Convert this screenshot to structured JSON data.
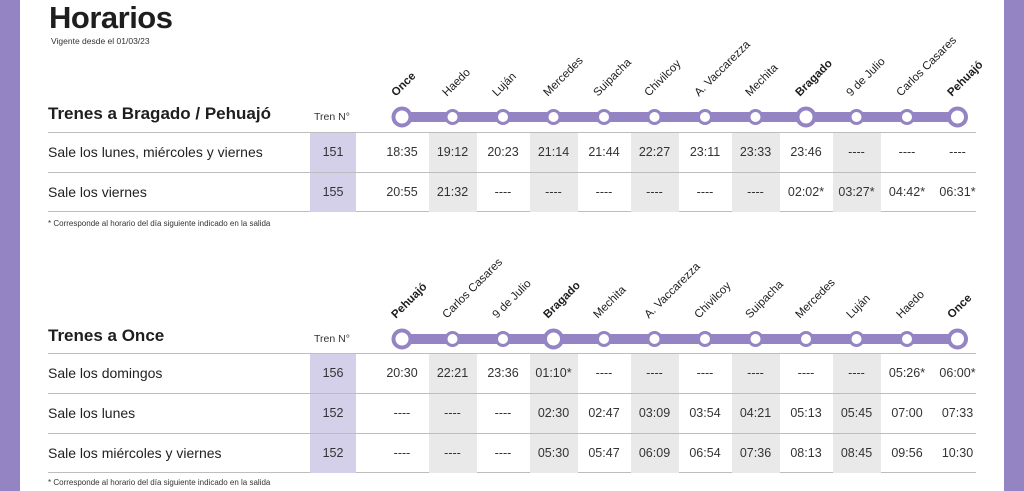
{
  "title": "Horarios",
  "subtitle": "Vigente desde el 01/03/23",
  "accent_color": "#9484c4",
  "train_cell_color": "#d5d0ea",
  "shade_color": "#e9e9ea",
  "note_text": "* Corresponde al horario del día siguiente indicado en la salida",
  "sections": [
    {
      "title": "Trenes a Bragado / Pehuajó",
      "tren_label": "Tren N°",
      "stations": [
        {
          "name": "Once",
          "major": true
        },
        {
          "name": "Haedo",
          "major": false
        },
        {
          "name": "Luján",
          "major": false
        },
        {
          "name": "Mercedes",
          "major": false
        },
        {
          "name": "Suipacha",
          "major": false
        },
        {
          "name": "Chivilcoy",
          "major": false
        },
        {
          "name": "A. Vaccarezza",
          "major": false
        },
        {
          "name": "Mechita",
          "major": false
        },
        {
          "name": "Bragado",
          "major": true
        },
        {
          "name": "9 de Julio",
          "major": false
        },
        {
          "name": "Carlos Casares",
          "major": false
        },
        {
          "name": "Pehuajó",
          "major": true
        }
      ],
      "rows": [
        {
          "label": "Sale los lunes, miércoles y viernes",
          "train": "151",
          "times": [
            "18:35",
            "19:12",
            "20:23",
            "21:14",
            "21:44",
            "22:27",
            "23:11",
            "23:33",
            "23:46",
            "----",
            "----",
            "----"
          ]
        },
        {
          "label": "Sale los viernes",
          "train": "155",
          "times": [
            "20:55",
            "21:32",
            "----",
            "----",
            "----",
            "----",
            "----",
            "----",
            "02:02*",
            "03:27*",
            "04:42*",
            "06:31*"
          ]
        }
      ]
    },
    {
      "title": "Trenes a Once",
      "tren_label": "Tren N°",
      "stations": [
        {
          "name": "Pehuajó",
          "major": true
        },
        {
          "name": "Carlos Casares",
          "major": false
        },
        {
          "name": "9 de Julio",
          "major": false
        },
        {
          "name": "Bragado",
          "major": true
        },
        {
          "name": "Mechita",
          "major": false
        },
        {
          "name": "A. Vaccarezza",
          "major": false
        },
        {
          "name": "Chivilcoy",
          "major": false
        },
        {
          "name": "Suipacha",
          "major": false
        },
        {
          "name": "Mercedes",
          "major": false
        },
        {
          "name": "Luján",
          "major": false
        },
        {
          "name": "Haedo",
          "major": false
        },
        {
          "name": "Once",
          "major": true
        }
      ],
      "rows": [
        {
          "label": "Sale los domingos",
          "train": "156",
          "times": [
            "20:30",
            "22:21",
            "23:36",
            "01:10*",
            "----",
            "----",
            "----",
            "----",
            "----",
            "----",
            "05:26*",
            "06:00*"
          ]
        },
        {
          "label": "Sale los lunes",
          "train": "152",
          "times": [
            "----",
            "----",
            "----",
            "02:30",
            "02:47",
            "03:09",
            "03:54",
            "04:21",
            "05:13",
            "05:45",
            "07:00",
            "07:33"
          ]
        },
        {
          "label": "Sale los miércoles y viernes",
          "train": "152",
          "times": [
            "----",
            "----",
            "----",
            "05:30",
            "05:47",
            "06:09",
            "06:54",
            "07:36",
            "08:13",
            "08:45",
            "09:56",
            "10:30"
          ]
        }
      ]
    }
  ]
}
